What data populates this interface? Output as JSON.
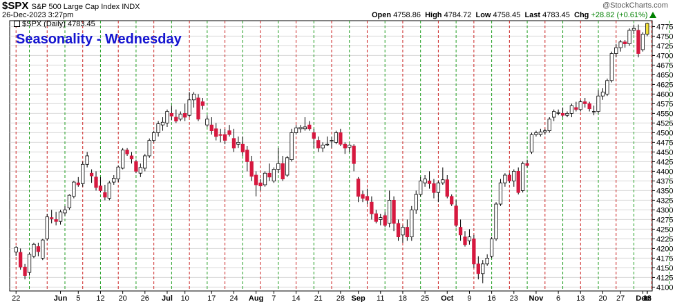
{
  "header": {
    "symbol": "$SPX",
    "description": "S&P 500 Large Cap Index INDX",
    "date": "26-Dec-2023 3:27pm",
    "logo": "@StockCharts.com"
  },
  "ohlc": {
    "open_label": "Open",
    "open": "4758.86",
    "high_label": "High",
    "high": "4784.72",
    "low_label": "Low",
    "low": "4758.45",
    "last_label": "Last",
    "last": "4783.45",
    "chg_label": "Chg",
    "chg": "+28.82 (+0.61%)",
    "up_color": "#008000"
  },
  "legend": "$SPX (Daily) 4783.45",
  "chart_data": {
    "type": "candlestick",
    "title": "Seasonality - Wednesday",
    "ylim": [
      4090,
      4790
    ],
    "y_ticks": [
      4100,
      4125,
      4150,
      4175,
      4200,
      4225,
      4250,
      4275,
      4300,
      4325,
      4350,
      4375,
      4400,
      4425,
      4450,
      4475,
      4500,
      4525,
      4550,
      4575,
      4600,
      4625,
      4650,
      4675,
      4700,
      4725,
      4750,
      4775
    ],
    "x_tick_labels": [
      "22",
      "Jun",
      "5",
      "12",
      "20",
      "26",
      "Jul",
      "10",
      "17",
      "24",
      "Aug",
      "7",
      "14",
      "21",
      "28",
      "Sep",
      "11",
      "18",
      "25",
      "Oct",
      "9",
      "16",
      "23",
      "Nov",
      "6",
      "13",
      "20",
      "27",
      "Dec",
      "11",
      "18",
      "26"
    ],
    "bold_x_labels": [
      "Jun",
      "Jul",
      "Aug",
      "Sep",
      "Oct",
      "Nov",
      "Dec"
    ],
    "colors": {
      "up": "#ffffff",
      "down": "#d6183f",
      "green_line": "#1f9e1f",
      "red_line": "#cc2222",
      "last_bar": "#f3e13a"
    },
    "candles": [
      [
        4191,
        4206,
        4181,
        4203
      ],
      [
        4190,
        4200,
        4145,
        4152
      ],
      [
        4152,
        4160,
        4120,
        4130
      ],
      [
        4138,
        4190,
        4130,
        4185
      ],
      [
        4180,
        4215,
        4175,
        4211
      ],
      [
        4205,
        4215,
        4180,
        4192
      ],
      [
        4175,
        4225,
        4170,
        4222
      ],
      [
        4225,
        4290,
        4220,
        4282
      ],
      [
        4280,
        4300,
        4265,
        4277
      ],
      [
        4275,
        4295,
        4260,
        4270
      ],
      [
        4270,
        4300,
        4262,
        4295
      ],
      [
        4292,
        4310,
        4285,
        4300
      ],
      [
        4305,
        4340,
        4300,
        4338
      ],
      [
        4335,
        4375,
        4330,
        4372
      ],
      [
        4370,
        4385,
        4360,
        4365
      ],
      [
        4368,
        4425,
        4360,
        4418
      ],
      [
        4418,
        4450,
        4410,
        4440
      ],
      [
        4395,
        4405,
        4370,
        4388
      ],
      [
        4385,
        4400,
        4350,
        4358
      ],
      [
        4362,
        4385,
        4345,
        4350
      ],
      [
        4345,
        4365,
        4325,
        4333
      ],
      [
        4330,
        4375,
        4325,
        4370
      ],
      [
        4372,
        4390,
        4365,
        4382
      ],
      [
        4380,
        4415,
        4372,
        4411
      ],
      [
        4408,
        4460,
        4405,
        4455
      ],
      [
        4455,
        4460,
        4440,
        4445
      ],
      [
        4440,
        4450,
        4420,
        4432
      ],
      [
        4425,
        4430,
        4395,
        4400
      ],
      [
        4395,
        4420,
        4385,
        4410
      ],
      [
        4408,
        4445,
        4400,
        4440
      ],
      [
        4440,
        4485,
        4435,
        4480
      ],
      [
        4480,
        4505,
        4475,
        4500
      ],
      [
        4500,
        4530,
        4490,
        4523
      ],
      [
        4520,
        4540,
        4505,
        4527
      ],
      [
        4525,
        4560,
        4515,
        4555
      ],
      [
        4550,
        4570,
        4532,
        4543
      ],
      [
        4540,
        4560,
        4525,
        4530
      ],
      [
        4535,
        4555,
        4530,
        4548
      ],
      [
        4550,
        4575,
        4530,
        4540
      ],
      [
        4545,
        4605,
        4540,
        4585
      ],
      [
        4585,
        4605,
        4565,
        4600
      ],
      [
        4590,
        4600,
        4530,
        4535
      ],
      [
        4580,
        4590,
        4560,
        4570
      ],
      [
        4520,
        4545,
        4515,
        4535
      ],
      [
        4520,
        4540,
        4495,
        4505
      ],
      [
        4510,
        4525,
        4480,
        4490
      ],
      [
        4495,
        4510,
        4475,
        4493
      ],
      [
        4495,
        4510,
        4470,
        4480
      ],
      [
        4505,
        4520,
        4490,
        4495
      ],
      [
        4485,
        4510,
        4450,
        4460
      ],
      [
        4470,
        4490,
        4460,
        4475
      ],
      [
        4470,
        4490,
        4440,
        4450
      ],
      [
        4455,
        4465,
        4400,
        4425
      ],
      [
        4425,
        4440,
        4375,
        4387
      ],
      [
        4390,
        4400,
        4335,
        4365
      ],
      [
        4370,
        4380,
        4350,
        4362
      ],
      [
        4365,
        4400,
        4360,
        4395
      ],
      [
        4395,
        4420,
        4375,
        4385
      ],
      [
        4375,
        4410,
        4370,
        4405
      ],
      [
        4405,
        4460,
        4395,
        4420
      ],
      [
        4420,
        4440,
        4375,
        4380
      ],
      [
        4390,
        4440,
        4385,
        4435
      ],
      [
        4430,
        4510,
        4425,
        4500
      ],
      [
        4500,
        4520,
        4495,
        4512
      ],
      [
        4510,
        4520,
        4500,
        4514
      ],
      [
        4510,
        4540,
        4505,
        4515
      ],
      [
        4520,
        4530,
        4505,
        4510
      ],
      [
        4500,
        4510,
        4460,
        4485
      ],
      [
        4480,
        4490,
        4450,
        4460
      ],
      [
        4460,
        4475,
        4450,
        4468
      ],
      [
        4470,
        4490,
        4465,
        4470
      ],
      [
        4478,
        4490,
        4460,
        4480
      ],
      [
        4475,
        4505,
        4470,
        4500
      ],
      [
        4500,
        4510,
        4465,
        4470
      ],
      [
        4470,
        4475,
        4445,
        4460
      ],
      [
        4462,
        4470,
        4450,
        4468
      ],
      [
        4465,
        4470,
        4400,
        4420
      ],
      [
        4380,
        4385,
        4320,
        4335
      ],
      [
        4340,
        4350,
        4320,
        4330
      ],
      [
        4335,
        4355,
        4315,
        4325
      ],
      [
        4320,
        4335,
        4275,
        4290
      ],
      [
        4290,
        4300,
        4265,
        4270
      ],
      [
        4275,
        4290,
        4260,
        4280
      ],
      [
        4285,
        4295,
        4255,
        4260
      ],
      [
        4265,
        4350,
        4255,
        4325
      ],
      [
        4325,
        4335,
        4245,
        4265
      ],
      [
        4265,
        4275,
        4220,
        4230
      ],
      [
        4235,
        4260,
        4215,
        4255
      ],
      [
        4255,
        4275,
        4220,
        4230
      ],
      [
        4230,
        4310,
        4220,
        4300
      ],
      [
        4300,
        4350,
        4290,
        4340
      ],
      [
        4340,
        4385,
        4335,
        4375
      ],
      [
        4370,
        4390,
        4360,
        4380
      ],
      [
        4375,
        4400,
        4355,
        4368
      ],
      [
        4368,
        4380,
        4330,
        4345
      ],
      [
        4345,
        4375,
        4320,
        4370
      ],
      [
        4370,
        4410,
        4365,
        4378
      ],
      [
        4378,
        4390,
        4330,
        4335
      ],
      [
        4335,
        4340,
        4310,
        4315
      ],
      [
        4310,
        4325,
        4255,
        4260
      ],
      [
        4255,
        4275,
        4220,
        4235
      ],
      [
        4230,
        4245,
        4205,
        4210
      ],
      [
        4220,
        4250,
        4210,
        4230
      ],
      [
        4225,
        4235,
        4150,
        4160
      ],
      [
        4160,
        4180,
        4120,
        4135
      ],
      [
        4135,
        4170,
        4110,
        4160
      ],
      [
        4160,
        4185,
        4155,
        4175
      ],
      [
        4180,
        4230,
        4175,
        4225
      ],
      [
        4225,
        4320,
        4220,
        4315
      ],
      [
        4315,
        4380,
        4310,
        4370
      ],
      [
        4370,
        4395,
        4360,
        4390
      ],
      [
        4390,
        4395,
        4370,
        4375
      ],
      [
        4375,
        4405,
        4360,
        4400
      ],
      [
        4400,
        4410,
        4340,
        4345
      ],
      [
        4350,
        4425,
        4345,
        4420
      ],
      [
        4420,
        4430,
        4410,
        4415
      ],
      [
        4450,
        4500,
        4445,
        4495
      ],
      [
        4495,
        4505,
        4490,
        4500
      ],
      [
        4495,
        4510,
        4490,
        4502
      ],
      [
        4502,
        4510,
        4495,
        4505
      ],
      [
        4505,
        4540,
        4500,
        4535
      ],
      [
        4540,
        4560,
        4530,
        4555
      ],
      [
        4550,
        4560,
        4545,
        4552
      ],
      [
        4550,
        4565,
        4540,
        4545
      ],
      [
        4545,
        4555,
        4540,
        4550
      ],
      [
        4550,
        4575,
        4540,
        4570
      ],
      [
        4565,
        4580,
        4555,
        4560
      ],
      [
        4560,
        4585,
        4555,
        4580
      ],
      [
        4580,
        4590,
        4565,
        4575
      ],
      [
        4575,
        4580,
        4555,
        4562
      ],
      [
        4555,
        4570,
        4545,
        4555
      ],
      [
        4555,
        4610,
        4550,
        4595
      ],
      [
        4595,
        4615,
        4585,
        4605
      ],
      [
        4600,
        4640,
        4595,
        4635
      ],
      [
        4635,
        4710,
        4630,
        4705
      ],
      [
        4705,
        4730,
        4695,
        4720
      ],
      [
        4720,
        4740,
        4710,
        4735
      ],
      [
        4735,
        4740,
        4720,
        4730
      ],
      [
        4730,
        4770,
        4725,
        4765
      ],
      [
        4765,
        4780,
        4755,
        4770
      ],
      [
        4765,
        4780,
        4695,
        4705
      ],
      [
        4715,
        4760,
        4710,
        4755
      ],
      [
        4755,
        4785,
        4750,
        4783
      ]
    ],
    "markers": [
      [
        0,
        "r"
      ],
      [
        3,
        "g"
      ],
      [
        7,
        "r"
      ],
      [
        11,
        "g"
      ],
      [
        15,
        "r"
      ],
      [
        19,
        "g"
      ],
      [
        23,
        "r"
      ],
      [
        27,
        "g"
      ],
      [
        31,
        "r"
      ],
      [
        35,
        "g"
      ],
      [
        39,
        "r"
      ],
      [
        43,
        "g"
      ],
      [
        47,
        "r"
      ],
      [
        51,
        "g"
      ],
      [
        55,
        "r"
      ],
      [
        59,
        "g"
      ],
      [
        63,
        "r"
      ],
      [
        67,
        "g"
      ],
      [
        71,
        "r"
      ],
      [
        75,
        "g"
      ],
      [
        79,
        "r"
      ],
      [
        83,
        "g"
      ],
      [
        87,
        "r"
      ],
      [
        91,
        "g"
      ],
      [
        95,
        "r"
      ],
      [
        99,
        "g"
      ],
      [
        103,
        "r"
      ],
      [
        107,
        "g"
      ],
      [
        111,
        "r"
      ],
      [
        115,
        "g"
      ],
      [
        119,
        "r"
      ],
      [
        123,
        "g"
      ],
      [
        127,
        "r"
      ],
      [
        131,
        "g"
      ],
      [
        135,
        "r"
      ],
      [
        139,
        "g"
      ],
      [
        143,
        "r"
      ],
      [
        147,
        "g"
      ],
      [
        151,
        "r"
      ]
    ]
  }
}
